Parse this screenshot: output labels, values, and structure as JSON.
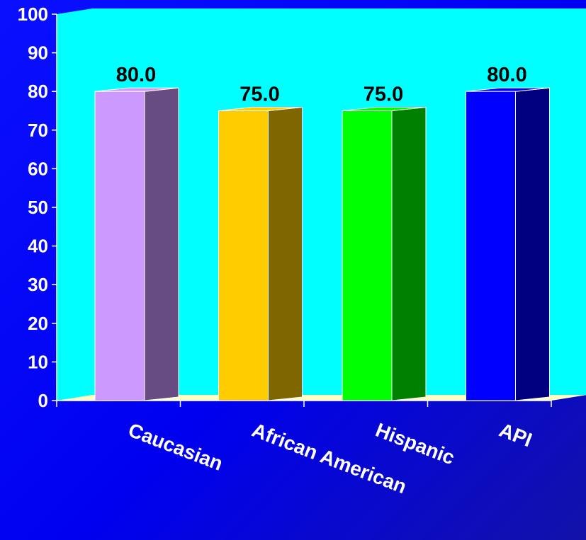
{
  "chart_data": {
    "type": "bar",
    "style": "3d",
    "categories": [
      "Caucasian",
      "African American",
      "Hispanic",
      "API"
    ],
    "values": [
      80.0,
      75.0,
      75.0,
      80.0
    ],
    "data_labels": [
      "80.0",
      "75.0",
      "75.0",
      "80.0"
    ],
    "ylim": [
      0,
      100
    ],
    "yticks": [
      0,
      10,
      20,
      30,
      40,
      50,
      60,
      70,
      80,
      90,
      100
    ],
    "grid": false,
    "title": "",
    "xlabel": "",
    "ylabel": "",
    "colors": {
      "background": "#0000f0",
      "plot_area": "#00ffff",
      "floor": "#ffffc0",
      "text": "#ffffff",
      "data_label": "#000000",
      "bar_fronts": [
        "#cc99ff",
        "#ffcc00",
        "#00ff00",
        "#0000ff"
      ],
      "bar_sides": [
        "#664c80",
        "#806600",
        "#008000",
        "#000080"
      ]
    }
  }
}
